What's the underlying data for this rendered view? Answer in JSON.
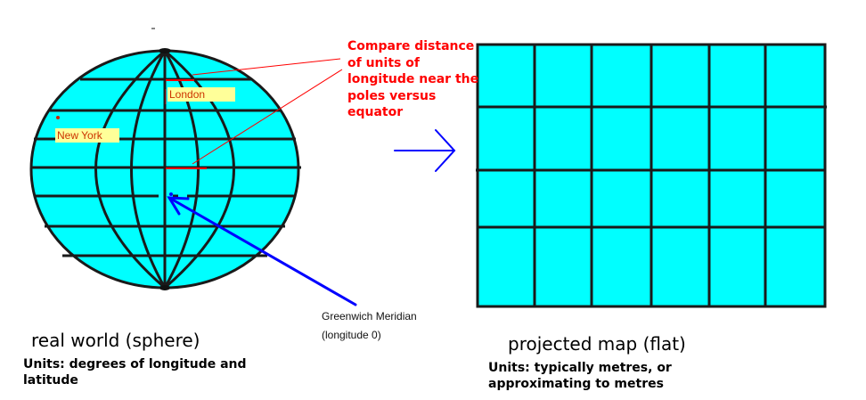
{
  "sphere": {
    "heading": "real world (sphere)",
    "units": "Units: degrees of longitude and latitude",
    "cities": {
      "london": "London",
      "new_york": "New York"
    },
    "meridian_label_line1": "Greenwich Meridian",
    "meridian_label_line2": "(longitude 0)"
  },
  "annotation": {
    "compare_note": "Compare distance of units of longitude near the poles versus equator"
  },
  "flat_map": {
    "heading": "projected map (flat)",
    "units": "Units: typically metres, or approximating to metres"
  },
  "colors": {
    "globe_fill": "#00ffff",
    "line_color": "#1a1a1a",
    "annotation_red": "#ff0000",
    "arrow_blue": "#0000ff",
    "label_background": "#ffff99"
  }
}
